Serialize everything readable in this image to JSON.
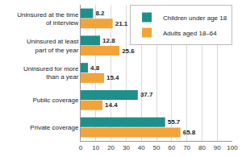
{
  "chart_data": {
    "type": "bar",
    "orientation": "horizontal",
    "categories": [
      "Uninsured at the time of interview",
      "Uninsured at least part of the year",
      "Uninsured for more than a year",
      "Public coverage",
      "Private coverage"
    ],
    "series": [
      {
        "name": "Children under age 18",
        "color": "#1f8f8c",
        "values": [
          8.2,
          12.8,
          4.8,
          37.7,
          55.7
        ]
      },
      {
        "name": "Adults aged 18–64",
        "color": "#f2a33a",
        "values": [
          21.1,
          25.6,
          15.4,
          14.4,
          65.8
        ]
      }
    ],
    "xlim": [
      0,
      100
    ],
    "xticks": [
      0,
      10,
      20,
      30,
      40,
      50,
      60,
      70,
      80,
      90,
      100
    ],
    "grid": true,
    "legend": "upper right",
    "data_labels": true
  }
}
